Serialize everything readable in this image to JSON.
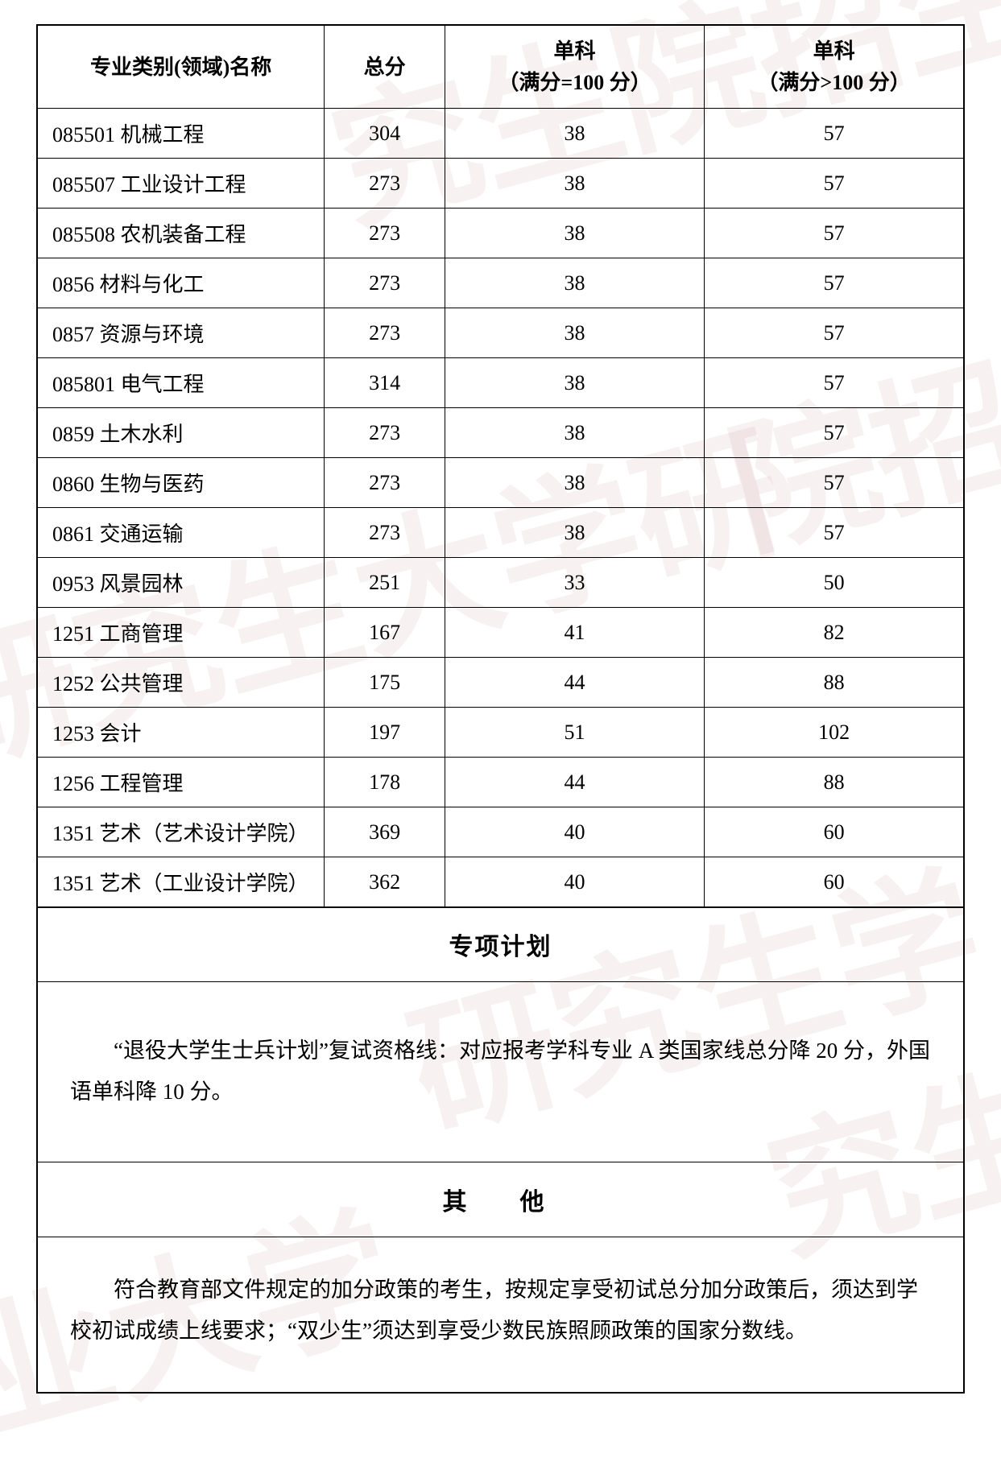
{
  "table": {
    "headers": {
      "name": "专业类别(领域)名称",
      "total": "总分",
      "sub1_line1": "单科",
      "sub1_line2": "（满分=100 分）",
      "sub2_line1": "单科",
      "sub2_line2": "（满分>100 分）"
    },
    "rows": [
      {
        "name": "085501 机械工程",
        "total": "304",
        "sub1": "38",
        "sub2": "57"
      },
      {
        "name": "085507 工业设计工程",
        "total": "273",
        "sub1": "38",
        "sub2": "57"
      },
      {
        "name": "085508  农机装备工程",
        "total": "273",
        "sub1": "38",
        "sub2": "57"
      },
      {
        "name": "0856 材料与化工",
        "total": "273",
        "sub1": "38",
        "sub2": "57"
      },
      {
        "name": "0857 资源与环境",
        "total": "273",
        "sub1": "38",
        "sub2": "57"
      },
      {
        "name": "085801 电气工程",
        "total": "314",
        "sub1": "38",
        "sub2": "57"
      },
      {
        "name": "0859 土木水利",
        "total": "273",
        "sub1": "38",
        "sub2": "57"
      },
      {
        "name": "0860 生物与医药",
        "total": "273",
        "sub1": "38",
        "sub2": "57"
      },
      {
        "name": "0861 交通运输",
        "total": "273",
        "sub1": "38",
        "sub2": "57"
      },
      {
        "name": "0953  风景园林",
        "total": "251",
        "sub1": "33",
        "sub2": "50"
      },
      {
        "name": "1251 工商管理",
        "total": "167",
        "sub1": "41",
        "sub2": "82"
      },
      {
        "name": "1252 公共管理",
        "total": "175",
        "sub1": "44",
        "sub2": "88"
      },
      {
        "name": "1253 会计",
        "total": "197",
        "sub1": "51",
        "sub2": "102"
      },
      {
        "name": "1256 工程管理",
        "total": "178",
        "sub1": "44",
        "sub2": "88"
      },
      {
        "name": "1351 艺术（艺术设计学院）",
        "total": "369",
        "sub1": "40",
        "sub2": "60"
      },
      {
        "name": "1351 艺术（工业设计学院）",
        "total": "362",
        "sub1": "40",
        "sub2": "60"
      }
    ],
    "styling": {
      "border_color": "#000000",
      "header_fontsize": 26,
      "cell_fontsize": 26,
      "header_fontweight": "bold",
      "column_widths_pct": [
        31,
        13,
        28,
        28
      ],
      "text_align_name": "left",
      "text_align_num": "center",
      "row_padding_v": 12,
      "row_padding_h": 10
    }
  },
  "sections": {
    "special_plan": {
      "title": "专项计划",
      "body": "“退役大学生士兵计划”复试资格线：对应报考学科专业 A 类国家线总分降 20 分，外国语单科降 10 分。"
    },
    "other": {
      "title": "其　他",
      "body": "符合教育部文件规定的加分政策的考生，按规定享受初试总分加分政策后，须达到学校初试成绩上线要求；“双少生”须达到享受少数民族照顾政策的国家分数线。"
    },
    "styling": {
      "title_fontsize": 30,
      "title_fontweight": "bold",
      "body_fontsize": 27,
      "body_lineheight": 1.9,
      "text_indent_em": 2
    }
  },
  "page": {
    "background_color": "#ffffff",
    "watermark_color": "rgba(200,140,140,0.12)"
  }
}
